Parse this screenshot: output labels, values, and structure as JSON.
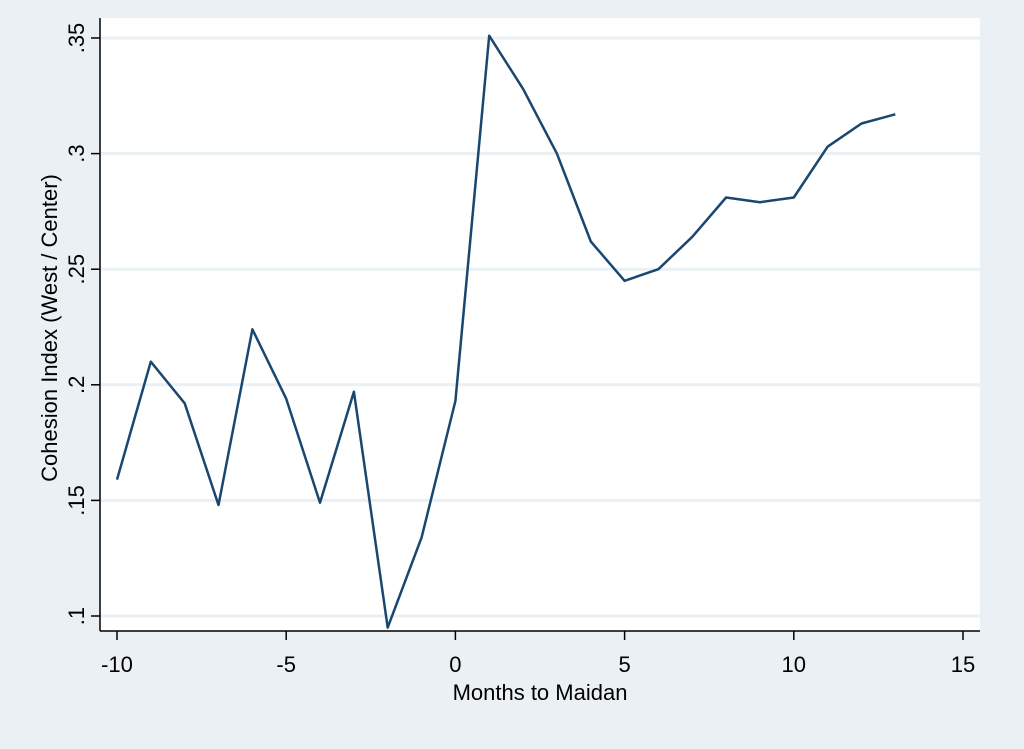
{
  "chart_data": {
    "type": "line",
    "title": "",
    "xlabel": "Months to Maidan",
    "ylabel": "Cohesion Index (West / Center)",
    "xlim": [
      -10,
      15
    ],
    "ylim": [
      0.1,
      0.35
    ],
    "x_ticks": [
      -10,
      -5,
      0,
      5,
      10,
      15
    ],
    "x_tick_labels": [
      "-10",
      "-5",
      "0",
      "5",
      "10",
      "15"
    ],
    "y_ticks": [
      0.1,
      0.15,
      0.2,
      0.25,
      0.3,
      0.35
    ],
    "y_tick_labels": [
      ".1",
      ".15",
      ".2",
      ".25",
      ".3",
      ".35"
    ],
    "grid": "horizontal",
    "legend": "none",
    "colors": {
      "background": "#eaf0f3",
      "plot_background": "#ffffff",
      "line": "#1a476f",
      "grid": "#eaf0f3"
    },
    "series": [
      {
        "x": [
          -10,
          -9,
          -8,
          -7,
          -6,
          -5,
          -4,
          -3,
          -2,
          -1,
          0,
          1,
          2,
          3,
          4,
          5,
          6,
          7,
          8,
          9,
          10,
          11,
          12,
          13
        ],
        "values": [
          0.159,
          0.21,
          0.192,
          0.148,
          0.224,
          0.194,
          0.149,
          0.197,
          0.095,
          0.134,
          0.193,
          0.351,
          0.328,
          0.3,
          0.262,
          0.245,
          0.25,
          0.264,
          0.281,
          0.279,
          0.281,
          0.303,
          0.313,
          0.317
        ]
      }
    ]
  }
}
